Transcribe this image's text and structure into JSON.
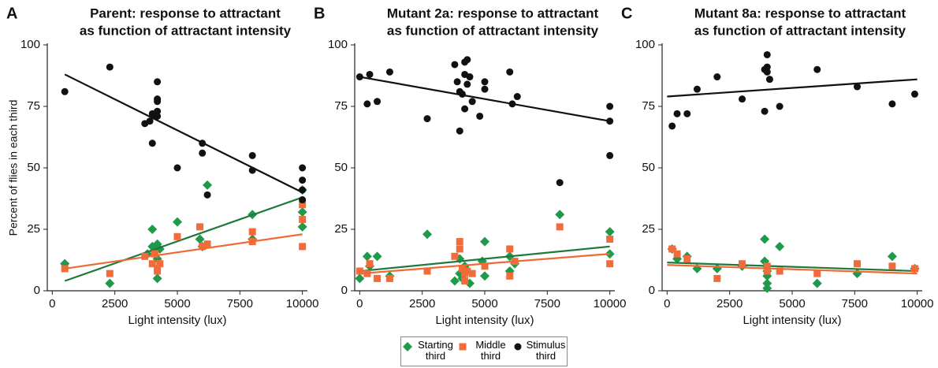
{
  "chart_data": [
    {
      "type": "scatter",
      "label": "A",
      "title": [
        "Parent: response to attractant",
        "as function of attractant intensity"
      ],
      "xlabel": "Light intensity (lux)",
      "ylabel": "Percent of flies in each third",
      "xlim": [
        -200,
        10200
      ],
      "ylim": [
        0,
        100
      ],
      "xticks": [
        0,
        2500,
        5000,
        7500,
        10000
      ],
      "yticks": [
        0,
        25,
        50,
        75,
        100
      ],
      "series": [
        {
          "name": "Starting third",
          "color": "#1f9a4b",
          "line_color": "#1e7a3c",
          "marker": "diamond",
          "x": [
            500,
            2300,
            3800,
            4000,
            4000,
            4100,
            4200,
            4200,
            4200,
            4300,
            5000,
            5900,
            6000,
            6200,
            8000,
            8000,
            10000,
            10000,
            10000
          ],
          "values": [
            11,
            3,
            15,
            25,
            18,
            16,
            19,
            13,
            5,
            17,
            28,
            21,
            18,
            43,
            31,
            21,
            41,
            32,
            26
          ],
          "trend": {
            "x": [
              500,
              10000
            ],
            "y": [
              4,
              38
            ]
          }
        },
        {
          "name": "Middle third",
          "color": "#f26b3a",
          "line_color": "#ef6a35",
          "marker": "square",
          "x": [
            500,
            2300,
            3700,
            4000,
            4100,
            4200,
            4200,
            4300,
            5000,
            5900,
            6200,
            6000,
            8000,
            8000,
            10000,
            10000,
            10000
          ],
          "values": [
            9,
            7,
            14,
            11,
            15,
            9,
            8,
            11,
            22,
            26,
            19,
            18,
            24,
            20,
            35,
            29,
            18
          ],
          "trend": {
            "x": [
              500,
              10000
            ],
            "y": [
              9,
              23
            ]
          }
        },
        {
          "name": "Stimulus third",
          "color": "#111111",
          "line_color": "#111111",
          "marker": "circle",
          "x": [
            500,
            2300,
            3700,
            3900,
            4000,
            4000,
            4100,
            4200,
            4200,
            4200,
            4200,
            4200,
            5000,
            6000,
            6000,
            6200,
            8000,
            8000,
            10000,
            10000,
            10000,
            10000
          ],
          "values": [
            81,
            91,
            68,
            69,
            72,
            60,
            71,
            85,
            78,
            77,
            73,
            71,
            50,
            60,
            56,
            39,
            55,
            49,
            50,
            45,
            41,
            37
          ],
          "trend": {
            "x": [
              500,
              10000
            ],
            "y": [
              88,
              40
            ]
          }
        }
      ]
    },
    {
      "type": "scatter",
      "label": "B",
      "title": [
        "Mutant 2a: response to attractant",
        "as function of attractant intensity"
      ],
      "xlabel": "Light intensity (lux)",
      "xlim": [
        -200,
        10200
      ],
      "ylim": [
        0,
        100
      ],
      "xticks": [
        0,
        2500,
        5000,
        7500,
        10000
      ],
      "yticks": [
        0,
        25,
        50,
        75,
        100
      ],
      "series": [
        {
          "name": "Starting third",
          "color": "#1f9a4b",
          "line_color": "#1e7a3c",
          "marker": "diamond",
          "x": [
            0,
            300,
            400,
            700,
            1200,
            2700,
            3800,
            4000,
            4000,
            4100,
            4200,
            4400,
            5000,
            5000,
            4900,
            6000,
            6000,
            6200,
            8000,
            10000,
            10000
          ],
          "values": [
            5,
            14,
            10,
            14,
            6,
            23,
            4,
            7,
            13,
            5,
            10,
            3,
            20,
            6,
            12,
            14,
            8,
            11,
            31,
            24,
            15
          ],
          "trend": {
            "x": [
              0,
              10000
            ],
            "y": [
              8,
              18
            ]
          }
        },
        {
          "name": "Middle third",
          "color": "#f26b3a",
          "line_color": "#ef6a35",
          "marker": "square",
          "x": [
            0,
            300,
            400,
            700,
            1200,
            2700,
            3800,
            4000,
            4000,
            4100,
            4200,
            4200,
            4300,
            4500,
            5000,
            6000,
            6000,
            6200,
            8000,
            10000,
            10000
          ],
          "values": [
            8,
            7,
            11,
            5,
            5,
            8,
            14,
            20,
            17,
            9,
            7,
            4,
            8,
            7,
            10,
            17,
            6,
            12,
            26,
            21,
            11
          ],
          "trend": {
            "x": [
              0,
              10000
            ],
            "y": [
              7,
              15
            ]
          }
        },
        {
          "name": "Stimulus third",
          "color": "#111111",
          "line_color": "#111111",
          "marker": "circle",
          "x": [
            0,
            300,
            400,
            700,
            1200,
            2700,
            3800,
            3900,
            4000,
            4000,
            4100,
            4200,
            4200,
            4200,
            4300,
            4300,
            4400,
            4500,
            4800,
            5000,
            5000,
            6000,
            6100,
            6300,
            8000,
            10000,
            10000,
            10000
          ],
          "values": [
            87,
            76,
            88,
            77,
            89,
            70,
            92,
            85,
            81,
            65,
            80,
            74,
            88,
            93,
            94,
            84,
            87,
            77,
            71,
            82,
            85,
            89,
            76,
            79,
            44,
            75,
            69,
            55
          ],
          "trend": {
            "x": [
              0,
              10000
            ],
            "y": [
              87,
              69
            ]
          }
        }
      ]
    },
    {
      "type": "scatter",
      "label": "C",
      "title": [
        "Mutant 8a: response to attractant",
        "as function of attractant intensity"
      ],
      "xlabel": "Light intensity (lux)",
      "xlim": [
        -200,
        10200
      ],
      "ylim": [
        0,
        100
      ],
      "xticks": [
        0,
        2500,
        5000,
        7500,
        10000
      ],
      "yticks": [
        0,
        25,
        50,
        75,
        100
      ],
      "series": [
        {
          "name": "Starting third",
          "color": "#1f9a4b",
          "line_color": "#1e7a3c",
          "marker": "diamond",
          "x": [
            200,
            400,
            800,
            1200,
            2000,
            3000,
            3900,
            3900,
            4000,
            4000,
            4000,
            4000,
            4000,
            4500,
            6000,
            7600,
            9000,
            9900
          ],
          "values": [
            17,
            13,
            14,
            9,
            9,
            10,
            21,
            12,
            10,
            8,
            6,
            3,
            1,
            18,
            3,
            7,
            14,
            9
          ],
          "trend": {
            "x": [
              0,
              10000
            ],
            "y": [
              11.5,
              8
            ]
          }
        },
        {
          "name": "Middle third",
          "color": "#f26b3a",
          "line_color": "#ef6a35",
          "marker": "square",
          "x": [
            200,
            400,
            800,
            2000,
            3000,
            4000,
            4000,
            4500,
            6000,
            7600,
            9000,
            9900
          ],
          "values": [
            17,
            15,
            13,
            5,
            11,
            10,
            8,
            8,
            7,
            11,
            10,
            9
          ],
          "trend": {
            "x": [
              0,
              10000
            ],
            "y": [
              10.5,
              7
            ]
          }
        },
        {
          "name": "Stimulus third",
          "color": "#111111",
          "line_color": "#111111",
          "marker": "circle",
          "x": [
            200,
            400,
            800,
            1200,
            2000,
            3000,
            3900,
            3900,
            4000,
            4000,
            4000,
            4100,
            4500,
            6000,
            7600,
            9000,
            9900
          ],
          "values": [
            67,
            72,
            72,
            82,
            87,
            78,
            73,
            90,
            91,
            89,
            96,
            86,
            75,
            90,
            83,
            76,
            80
          ],
          "trend": {
            "x": [
              0,
              10000
            ],
            "y": [
              79,
              86
            ]
          }
        }
      ]
    }
  ]
}
